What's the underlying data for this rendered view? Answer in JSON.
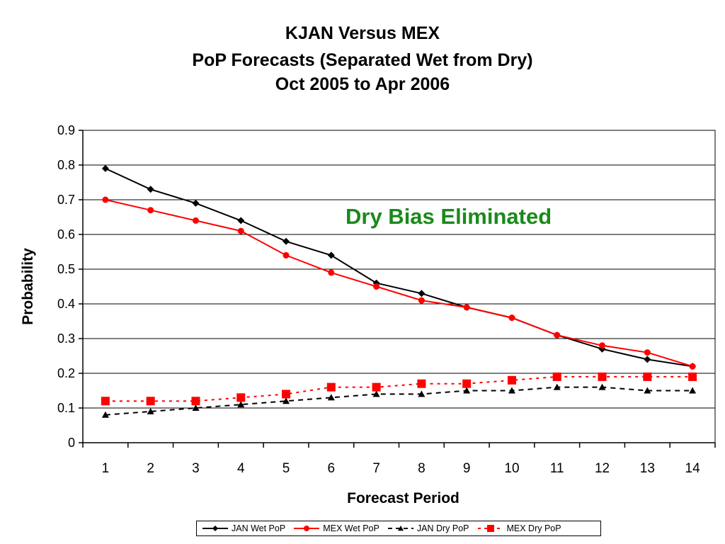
{
  "title_lines": [
    "KJAN Versus MEX",
    "PoP Forecasts (Separated Wet from Dry)",
    "Oct 2005 to Apr 2006"
  ],
  "annotation": "Dry Bias Eliminated",
  "colors": {
    "black": "#000000",
    "red": "#ff0000",
    "annotation": "#1a8a1a"
  },
  "chart_data": {
    "type": "line",
    "title": "KJAN Versus MEX PoP Forecasts (Separated Wet from Dry) Oct 2005 to Apr 2006",
    "xlabel": "Forecast Period",
    "ylabel": "Probability",
    "categories": [
      "1",
      "2",
      "3",
      "4",
      "5",
      "6",
      "7",
      "8",
      "9",
      "10",
      "11",
      "12",
      "13",
      "14"
    ],
    "ylim": [
      0,
      0.9
    ],
    "yticks": [
      "0",
      "0.1",
      "0.2",
      "0.3",
      "0.4",
      "0.5",
      "0.6",
      "0.7",
      "0.8",
      "0.9"
    ],
    "grid": true,
    "legend_position": "bottom",
    "series": [
      {
        "name": "JAN Wet PoP",
        "color": "#000000",
        "marker": "diamond",
        "dash": "solid",
        "values": [
          0.79,
          0.73,
          0.69,
          0.64,
          0.58,
          0.54,
          0.46,
          0.43,
          0.39,
          0.36,
          0.31,
          0.27,
          0.24,
          0.22
        ]
      },
      {
        "name": "MEX Wet PoP",
        "color": "#ff0000",
        "marker": "circle",
        "dash": "solid",
        "values": [
          0.7,
          0.67,
          0.64,
          0.61,
          0.54,
          0.49,
          0.45,
          0.41,
          0.39,
          0.36,
          0.31,
          0.28,
          0.26,
          0.22
        ]
      },
      {
        "name": "JAN Dry PoP",
        "color": "#000000",
        "marker": "triangle",
        "dash": "dashed",
        "values": [
          0.08,
          0.09,
          0.1,
          0.11,
          0.12,
          0.13,
          0.14,
          0.14,
          0.15,
          0.15,
          0.16,
          0.16,
          0.15,
          0.15
        ]
      },
      {
        "name": "MEX Dry PoP",
        "color": "#ff0000",
        "marker": "square",
        "dash": "dotted",
        "values": [
          0.12,
          0.12,
          0.12,
          0.13,
          0.14,
          0.16,
          0.16,
          0.17,
          0.17,
          0.18,
          0.19,
          0.19,
          0.19,
          0.19
        ]
      }
    ]
  }
}
